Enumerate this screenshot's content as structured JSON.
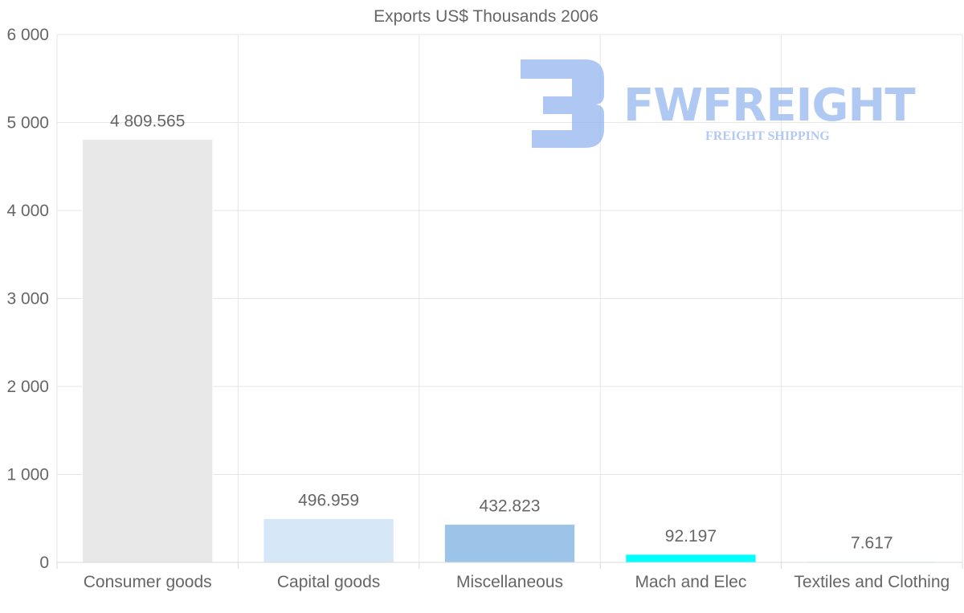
{
  "chart_data": {
    "type": "bar",
    "title": "Exports US$ Thousands 2006",
    "xlabel": "",
    "ylabel": "",
    "categories": [
      "Consumer goods",
      "Capital goods",
      "Miscellaneous",
      "Mach and Elec",
      "Textiles and Clothing"
    ],
    "values": [
      4809.565,
      496.959,
      432.823,
      92.197,
      7.617
    ],
    "data_labels": [
      "4 809.565",
      "496.959",
      "432.823",
      "92.197",
      "7.617"
    ],
    "bar_colors": [
      "#e8e8e8",
      "#d6e7f8",
      "#9bc4e8",
      "#00ffff",
      "#dff6fb"
    ],
    "ylim": [
      0,
      6000
    ],
    "yticks": [
      0,
      1000,
      2000,
      3000,
      4000,
      5000,
      6000
    ],
    "ytick_labels": [
      "0",
      "1 000",
      "2 000",
      "3 000",
      "4 000",
      "5 000",
      "6 000"
    ],
    "grid": true,
    "legend": "none"
  },
  "watermark": {
    "brand": "FWFREIGHT",
    "tagline": "FREIGHT SHIPPING",
    "color": "#8fb2ee"
  }
}
